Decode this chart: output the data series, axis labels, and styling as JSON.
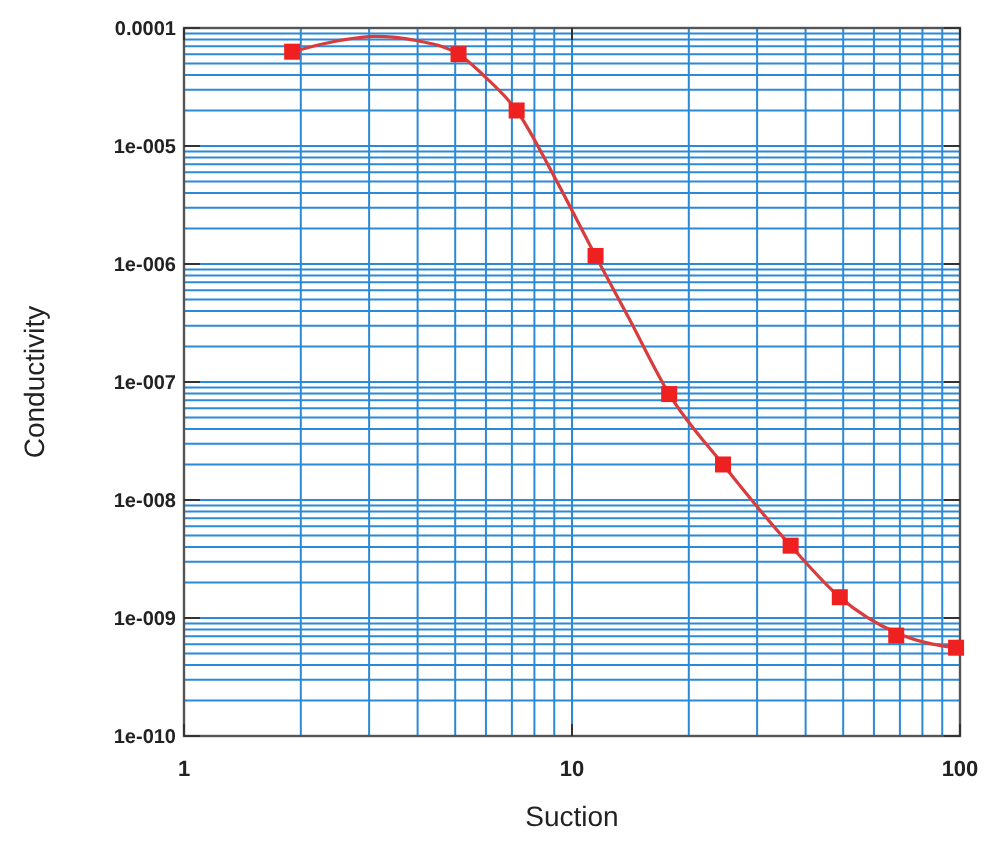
{
  "chart_data": {
    "type": "scatter",
    "xlabel": "Suction",
    "ylabel": "Conductivity",
    "log": "xy",
    "grid": true,
    "xlim": [
      1,
      100
    ],
    "ylim": [
      1e-10,
      0.0001
    ],
    "xticks": [
      1,
      {
        "value": 2,
        "label": null
      },
      {
        "value": 3,
        "label": null
      },
      {
        "value": 4,
        "label": null
      },
      {
        "value": 5,
        "label": null
      },
      {
        "value": 6,
        "label": null
      },
      {
        "value": 7,
        "label": null
      },
      {
        "value": 8,
        "label": null
      },
      {
        "value": 9,
        "label": null
      },
      10,
      {
        "value": 20,
        "label": null
      },
      {
        "value": 30,
        "label": null
      },
      {
        "value": 40,
        "label": null
      },
      {
        "value": 50,
        "label": null
      },
      {
        "value": 60,
        "label": null
      },
      {
        "value": 70,
        "label": null
      },
      {
        "value": 80,
        "label": null
      },
      {
        "value": 90,
        "label": null
      },
      100
    ],
    "yticks": [
      {
        "value": 1e-10,
        "label": "1e-010"
      },
      {
        "value": 2e-10,
        "label": null
      },
      {
        "value": 3e-10,
        "label": null
      },
      {
        "value": 4e-10,
        "label": null
      },
      {
        "value": 5e-10,
        "label": null
      },
      {
        "value": 6e-10,
        "label": null
      },
      {
        "value": 7e-10,
        "label": null
      },
      {
        "value": 8e-10,
        "label": null
      },
      {
        "value": 9e-10,
        "label": null
      },
      {
        "value": 1e-09,
        "label": "1e-009"
      },
      {
        "value": 2e-09,
        "label": null
      },
      {
        "value": 3e-09,
        "label": null
      },
      {
        "value": 4e-09,
        "label": null
      },
      {
        "value": 5e-09,
        "label": null
      },
      {
        "value": 6e-09,
        "label": null
      },
      {
        "value": 7e-09,
        "label": null
      },
      {
        "value": 8e-09,
        "label": null
      },
      {
        "value": 9e-09,
        "label": null
      },
      {
        "value": 1e-08,
        "label": "1e-008"
      },
      {
        "value": 2e-08,
        "label": null
      },
      {
        "value": 3e-08,
        "label": null
      },
      {
        "value": 4e-08,
        "label": null
      },
      {
        "value": 5e-08,
        "label": null
      },
      {
        "value": 6e-08,
        "label": null
      },
      {
        "value": 7e-08,
        "label": null
      },
      {
        "value": 8e-08,
        "label": null
      },
      {
        "value": 9e-08,
        "label": null
      },
      {
        "value": 1e-07,
        "label": "1e-007"
      },
      {
        "value": 2e-07,
        "label": null
      },
      {
        "value": 3e-07,
        "label": null
      },
      {
        "value": 4e-07,
        "label": null
      },
      {
        "value": 5e-07,
        "label": null
      },
      {
        "value": 6e-07,
        "label": null
      },
      {
        "value": 7e-07,
        "label": null
      },
      {
        "value": 8e-07,
        "label": null
      },
      {
        "value": 9e-07,
        "label": null
      },
      {
        "value": 1e-06,
        "label": "1e-006"
      },
      {
        "value": 2e-06,
        "label": null
      },
      {
        "value": 3e-06,
        "label": null
      },
      {
        "value": 4e-06,
        "label": null
      },
      {
        "value": 5e-06,
        "label": null
      },
      {
        "value": 6e-06,
        "label": null
      },
      {
        "value": 7e-06,
        "label": null
      },
      {
        "value": 8e-06,
        "label": null
      },
      {
        "value": 9e-06,
        "label": null
      },
      {
        "value": 1e-05,
        "label": "1e-005"
      },
      {
        "value": 2e-05,
        "label": null
      },
      {
        "value": 3e-05,
        "label": null
      },
      {
        "value": 4e-05,
        "label": null
      },
      {
        "value": 5e-05,
        "label": null
      },
      {
        "value": 6e-05,
        "label": null
      },
      {
        "value": 7e-05,
        "label": null
      },
      {
        "value": 8e-05,
        "label": null
      },
      {
        "value": 9e-05,
        "label": null
      },
      {
        "value": 0.0001,
        "label": "0.0001"
      }
    ],
    "series": [
      {
        "type": "line",
        "color": "#d83c3c",
        "marker": "none",
        "line_style": "solid",
        "x": [
          1.9,
          2.5,
          3.1,
          4,
          5.1,
          6,
          7.2,
          9,
          11.5,
          14,
          17.8,
          24.5,
          36.6,
          49,
          68.5,
          85,
          97.7
        ],
        "values": [
          6.3e-05,
          7.8e-05,
          8.5e-05,
          7.8e-05,
          6e-05,
          3.8e-05,
          2e-05,
          5.5e-06,
          1.17e-06,
          3.5e-07,
          7.9e-08,
          2e-08,
          4.1e-09,
          1.5e-09,
          7.5e-10,
          6e-10,
          5.6e-10
        ]
      },
      {
        "type": "scatter",
        "color": "#ee2020",
        "marker": "square",
        "x": [
          1.9,
          5.1,
          7.2,
          11.5,
          17.8,
          24.5,
          36.6,
          49,
          68.5,
          97.7
        ],
        "values": [
          6.3e-05,
          6e-05,
          2e-05,
          1.17e-06,
          7.9e-08,
          2e-08,
          4.1e-09,
          1.5e-09,
          7.1e-10,
          5.6e-10
        ]
      }
    ]
  }
}
